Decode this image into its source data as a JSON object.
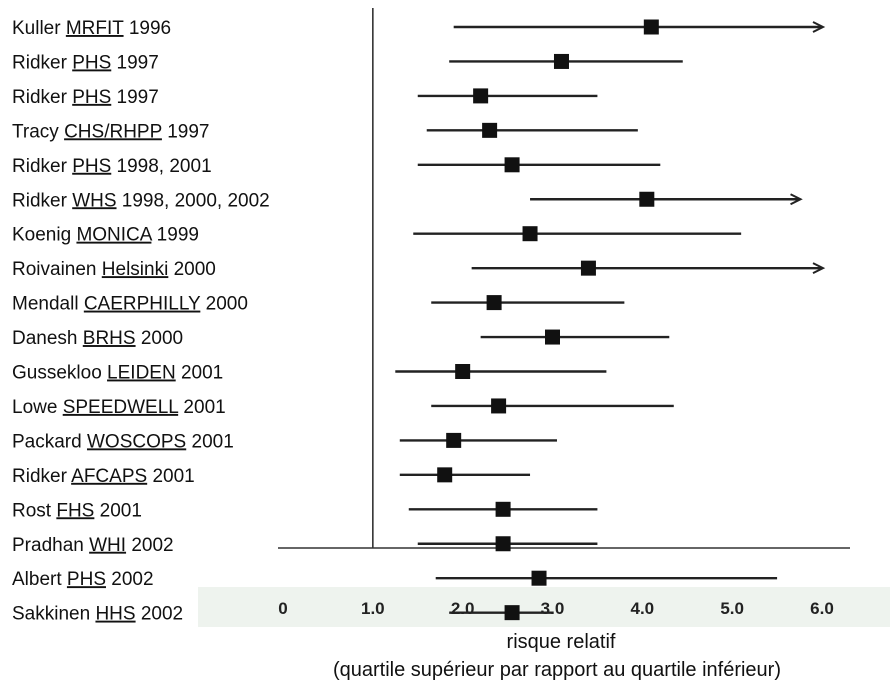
{
  "chart_data": {
    "type": "forest",
    "xlabel": "risque relatif",
    "xlabel_sub": "(quartile supérieur par rapport au quartile inférieur)",
    "xlim": [
      0,
      6.0
    ],
    "xticks": [
      "0",
      "1.0",
      "2.0",
      "3.0",
      "4.0",
      "5.0",
      "6.0"
    ],
    "xtick_values": [
      0,
      1,
      2,
      3,
      4,
      5,
      6
    ],
    "reference_line": 1.0,
    "colors": {
      "line": "#222222",
      "marker": "#111111",
      "axis": "#333333",
      "tick_band": "#eef3ee"
    },
    "studies": [
      {
        "author": "Kuller",
        "study": "MRFIT",
        "year": "1996",
        "rr": 4.1,
        "lo": 1.9,
        "hi": 6.0,
        "arrow": true
      },
      {
        "author": "Ridker",
        "study": "PHS",
        "year": "1997",
        "rr": 3.1,
        "lo": 1.85,
        "hi": 4.45,
        "arrow": false
      },
      {
        "author": "Ridker",
        "study": "PHS",
        "year": "1997",
        "rr": 2.2,
        "lo": 1.5,
        "hi": 3.5,
        "arrow": false
      },
      {
        "author": "Tracy",
        "study": "CHS/RHPP",
        "year": "1997",
        "rr": 2.3,
        "lo": 1.6,
        "hi": 3.95,
        "arrow": false
      },
      {
        "author": "Ridker",
        "study": "PHS",
        "year": "1998, 2001",
        "rr": 2.55,
        "lo": 1.5,
        "hi": 4.2,
        "arrow": false
      },
      {
        "author": "Ridker",
        "study": "WHS",
        "year": "1998, 2000, 2002",
        "rr": 4.05,
        "lo": 2.75,
        "hi": 5.75,
        "arrow": true
      },
      {
        "author": "Koenig",
        "study": "MONICA",
        "year": "1999",
        "rr": 2.75,
        "lo": 1.45,
        "hi": 5.1,
        "arrow": false
      },
      {
        "author": "Roivainen",
        "study": "Helsinki",
        "year": "2000",
        "rr": 3.4,
        "lo": 2.1,
        "hi": 6.0,
        "arrow": true
      },
      {
        "author": "Mendall",
        "study": "CAERPHILLY",
        "year": "2000",
        "rr": 2.35,
        "lo": 1.65,
        "hi": 3.8,
        "arrow": false
      },
      {
        "author": "Danesh",
        "study": "BRHS",
        "year": "2000",
        "rr": 3.0,
        "lo": 2.2,
        "hi": 4.3,
        "arrow": false
      },
      {
        "author": "Gussekloo",
        "study": "LEIDEN",
        "year": "2001",
        "rr": 2.0,
        "lo": 1.25,
        "hi": 3.6,
        "arrow": false
      },
      {
        "author": "Lowe",
        "study": "SPEEDWELL",
        "year": "2001",
        "rr": 2.4,
        "lo": 1.65,
        "hi": 4.35,
        "arrow": false
      },
      {
        "author": "Packard",
        "study": "WOSCOPS",
        "year": "2001",
        "rr": 1.9,
        "lo": 1.3,
        "hi": 3.05,
        "arrow": false
      },
      {
        "author": "Ridker",
        "study": "AFCAPS",
        "year": "2001",
        "rr": 1.8,
        "lo": 1.3,
        "hi": 2.75,
        "arrow": false
      },
      {
        "author": "Rost",
        "study": "FHS",
        "year": "2001",
        "rr": 2.45,
        "lo": 1.4,
        "hi": 3.5,
        "arrow": false
      },
      {
        "author": "Pradhan",
        "study": "WHI",
        "year": "2002",
        "rr": 2.45,
        "lo": 1.5,
        "hi": 3.5,
        "arrow": false
      },
      {
        "author": "Albert",
        "study": "PHS",
        "year": "2002",
        "rr": 2.85,
        "lo": 1.7,
        "hi": 5.5,
        "arrow": false
      },
      {
        "author": "Sakkinen",
        "study": "HHS",
        "year": "2002",
        "rr": 2.55,
        "lo": 1.85,
        "hi": 3.0,
        "arrow": false
      }
    ]
  }
}
